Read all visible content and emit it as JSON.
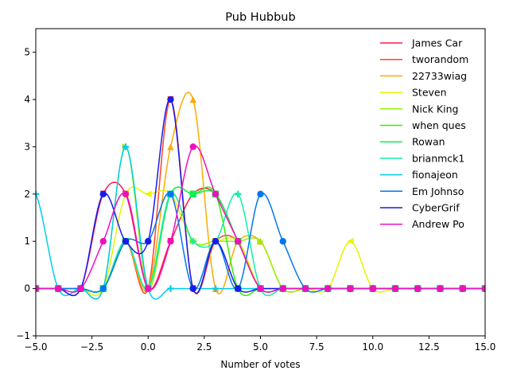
{
  "chart_data": {
    "type": "line",
    "title": "Pub Hubbub",
    "xlabel": "Number of votes",
    "ylabel": "",
    "xlim": [
      -5,
      15
    ],
    "ylim": [
      -1,
      5.5
    ],
    "xticks": [
      -5.0,
      -2.5,
      0.0,
      2.5,
      5.0,
      7.5,
      10.0,
      12.5,
      15.0
    ],
    "xtick_labels": [
      "−5.0",
      "−2.5",
      "0.0",
      "2.5",
      "5.0",
      "7.5",
      "10.0",
      "12.5",
      "15.0"
    ],
    "yticks": [
      -1,
      0,
      1,
      2,
      3,
      4,
      5
    ],
    "ytick_labels": [
      "−1",
      "0",
      "1",
      "2",
      "3",
      "4",
      "5"
    ],
    "grid": false,
    "legend_position": "top-right",
    "x": [
      -5,
      -4,
      -3,
      -2,
      -1,
      0,
      1,
      2,
      3,
      4,
      5,
      6,
      7,
      8,
      9,
      10,
      11,
      12,
      13,
      14,
      15
    ],
    "series": [
      {
        "name": "James Car",
        "color": "#ff1a4a",
        "marker": "triangle-down",
        "values": [
          0,
          0,
          0,
          2,
          2,
          0,
          1,
          2,
          2,
          1,
          0,
          0,
          0,
          0,
          0,
          0,
          0,
          0,
          0,
          0,
          0
        ]
      },
      {
        "name": "tworandom",
        "color": "#ff4422",
        "marker": "triangle-down",
        "values": [
          0,
          0,
          0,
          0,
          1,
          0,
          4,
          0,
          1,
          1,
          0,
          0,
          0,
          0,
          0,
          0,
          0,
          0,
          0,
          0,
          0
        ]
      },
      {
        "name": "22733wiag",
        "color": "#ffaa00",
        "marker": "triangle-up",
        "values": [
          0,
          0,
          0,
          0,
          1,
          0,
          3,
          4,
          0,
          1,
          1,
          0,
          0,
          0,
          0,
          0,
          0,
          0,
          0,
          0,
          0
        ]
      },
      {
        "name": "Steven",
        "color": "#e6f500",
        "marker": "triangle-left",
        "values": [
          0,
          0,
          0,
          0,
          2,
          2,
          2,
          1,
          1,
          1,
          0,
          0,
          0,
          0,
          1,
          0,
          0,
          0,
          0,
          0,
          0
        ]
      },
      {
        "name": "Nick King",
        "color": "#99f000",
        "marker": "triangle-right",
        "values": [
          0,
          0,
          0,
          0,
          3,
          0,
          2,
          1,
          1,
          1,
          1,
          0,
          0,
          0,
          0,
          0,
          0,
          0,
          0,
          0,
          0
        ]
      },
      {
        "name": "when ques",
        "color": "#33ee00",
        "marker": "square",
        "values": [
          0,
          0,
          0,
          0,
          1,
          0,
          2,
          2,
          2,
          0,
          0,
          0,
          0,
          0,
          0,
          0,
          0,
          0,
          0,
          0,
          0
        ]
      },
      {
        "name": "Rowan",
        "color": "#11ee55",
        "marker": "square",
        "values": [
          0,
          0,
          0,
          0,
          1,
          0,
          2,
          2,
          2,
          1,
          0,
          0,
          0,
          0,
          0,
          0,
          0,
          0,
          0,
          0,
          0
        ]
      },
      {
        "name": "brianmck1",
        "color": "#11eeaa",
        "marker": "plus",
        "values": [
          0,
          0,
          0,
          0,
          1,
          0,
          2,
          1,
          1,
          2,
          0,
          0,
          0,
          0,
          0,
          0,
          0,
          0,
          0,
          0,
          0
        ]
      },
      {
        "name": "fionajeon",
        "color": "#00ccee",
        "marker": "plus",
        "values": [
          2,
          0,
          0,
          0,
          3,
          0,
          0,
          0,
          0,
          0,
          0,
          0,
          0,
          0,
          0,
          0,
          0,
          0,
          0,
          0,
          0
        ]
      },
      {
        "name": "Em Johnso",
        "color": "#0077ee",
        "marker": "circle",
        "values": [
          0,
          0,
          0,
          0,
          1,
          1,
          2,
          0,
          1,
          0,
          2,
          1,
          0,
          0,
          0,
          0,
          0,
          0,
          0,
          0,
          0
        ]
      },
      {
        "name": "CyberGrif",
        "color": "#1a1aee",
        "marker": "circle",
        "values": [
          0,
          0,
          0,
          2,
          1,
          1,
          4,
          0,
          1,
          0,
          0,
          0,
          0,
          0,
          0,
          0,
          0,
          0,
          0,
          0,
          0
        ]
      },
      {
        "name": "Andrew Po",
        "color": "#ee11bb",
        "marker": "circle",
        "values": [
          0,
          0,
          0,
          1,
          2,
          0,
          1,
          3,
          2,
          1,
          0,
          0,
          0,
          0,
          0,
          0,
          0,
          0,
          0,
          0,
          0
        ]
      }
    ]
  }
}
